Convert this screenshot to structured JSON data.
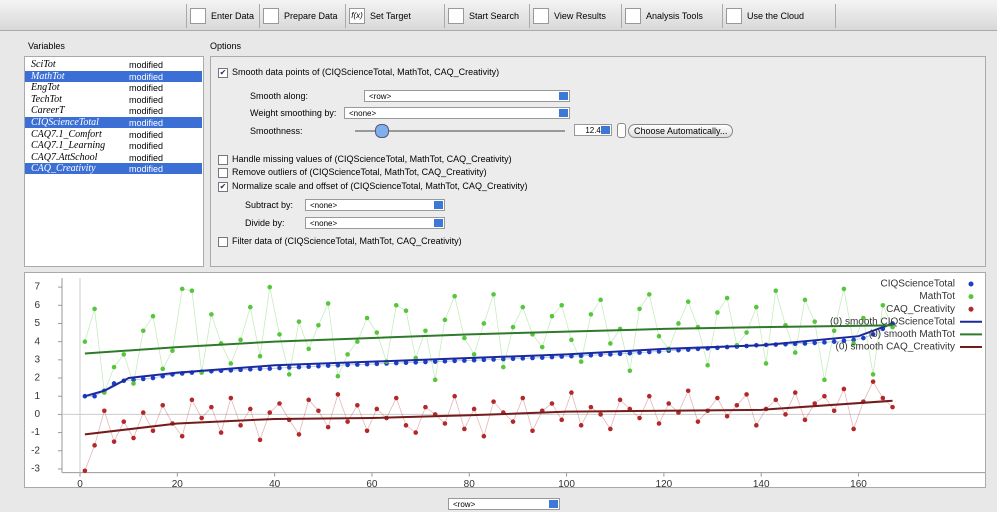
{
  "toolbar": {
    "tabs": [
      "Enter Data",
      "Prepare Data",
      "Set Target",
      "Start Search",
      "View Results",
      "Analysis Tools",
      "Use the Cloud"
    ],
    "set_target_icon": "f(x)"
  },
  "variables": {
    "title": "Variables",
    "rows": [
      {
        "name": "SciTot",
        "status": "modified",
        "selected": false
      },
      {
        "name": "MathTot",
        "status": "modified",
        "selected": true
      },
      {
        "name": "EngTot",
        "status": "modified",
        "selected": false
      },
      {
        "name": "TechTot",
        "status": "modified",
        "selected": false
      },
      {
        "name": "CareerT",
        "status": "modified",
        "selected": false
      },
      {
        "name": "CIQScienceTotal",
        "status": "modified",
        "selected": true
      },
      {
        "name": "CAQ7.1_Comfort",
        "status": "modified",
        "selected": false
      },
      {
        "name": "CAQ7.1_Learning",
        "status": "modified",
        "selected": false
      },
      {
        "name": "CAQ7.AttSchool",
        "status": "modified",
        "selected": false
      },
      {
        "name": "CAQ_Creativity",
        "status": "modified",
        "selected": true
      }
    ]
  },
  "options": {
    "title": "Options",
    "smooth": {
      "label": "Smooth data points of (CIQScienceTotal, MathTot, CAQ_Creativity)",
      "checked": true
    },
    "smooth_along": {
      "label": "Smooth along:",
      "value": "<row>"
    },
    "weight": {
      "label": "Weight smoothing by:",
      "value": "<none>"
    },
    "smoothness": {
      "label": "Smoothness:",
      "value": {
        "value": 12.4,
        "label": "12.4%"
      },
      "button": "Choose Automatically..."
    },
    "missing": {
      "label": "Handle missing values of (CIQScienceTotal, MathTot, CAQ_Creativity)",
      "checked": false
    },
    "outliers": {
      "label": "Remove outliers of (CIQScienceTotal, MathTot, CAQ_Creativity)",
      "checked": false
    },
    "normalize": {
      "label": "Normalize scale and offset of (CIQScienceTotal, MathTot, CAQ_Creativity)",
      "checked": true
    },
    "subtract": {
      "label": "Subtract by:",
      "value": "<none>"
    },
    "divide": {
      "label": "Divide by:",
      "value": "<none>"
    },
    "filter": {
      "label": "Filter data of (CIQScienceTotal, MathTot, CAQ_Creativity)",
      "checked": false
    }
  },
  "chart_data": {
    "type": "scatter",
    "x_selector": "<row>",
    "xlim": [
      -3.7,
      186
    ],
    "ylim": [
      -3.2,
      7.5
    ],
    "xticks": [
      0,
      20,
      40,
      60,
      80,
      100,
      120,
      140,
      160
    ],
    "yticks": [
      -3,
      -2,
      -1,
      0,
      1,
      2,
      3,
      4,
      5,
      6,
      7
    ],
    "legend": "upper right",
    "zero_lines": true,
    "x": [
      1,
      3,
      5,
      7,
      9,
      11,
      13,
      15,
      17,
      19,
      21,
      23,
      25,
      27,
      29,
      31,
      33,
      35,
      37,
      39,
      41,
      43,
      45,
      47,
      49,
      51,
      53,
      55,
      57,
      59,
      61,
      63,
      65,
      67,
      69,
      71,
      73,
      75,
      77,
      79,
      81,
      83,
      85,
      87,
      89,
      91,
      93,
      95,
      97,
      99,
      101,
      103,
      105,
      107,
      109,
      111,
      113,
      115,
      117,
      119,
      121,
      123,
      125,
      127,
      129,
      131,
      133,
      135,
      137,
      139,
      141,
      143,
      145,
      147,
      149,
      151,
      153,
      155,
      157,
      159,
      161,
      163,
      165,
      167
    ],
    "series": [
      {
        "name": "CIQScienceTotal",
        "color": "#1c3fc4",
        "style": "points",
        "values": [
          1.0,
          1.0,
          1.3,
          1.7,
          1.85,
          1.9,
          1.95,
          2.0,
          2.1,
          2.2,
          2.25,
          2.3,
          2.35,
          2.37,
          2.4,
          2.42,
          2.45,
          2.48,
          2.5,
          2.52,
          2.55,
          2.58,
          2.6,
          2.62,
          2.65,
          2.68,
          2.7,
          2.72,
          2.74,
          2.76,
          2.78,
          2.8,
          2.82,
          2.84,
          2.86,
          2.88,
          2.9,
          2.92,
          2.94,
          2.96,
          2.98,
          3.0,
          3.02,
          3.04,
          3.06,
          3.08,
          3.1,
          3.12,
          3.15,
          3.18,
          3.2,
          3.22,
          3.25,
          3.28,
          3.3,
          3.33,
          3.36,
          3.4,
          3.43,
          3.46,
          3.5,
          3.53,
          3.56,
          3.6,
          3.63,
          3.66,
          3.7,
          3.73,
          3.76,
          3.8,
          3.82,
          3.84,
          3.86,
          3.88,
          3.9,
          3.93,
          3.96,
          4.0,
          4.05,
          4.1,
          4.2,
          4.4,
          4.7,
          5.0
        ]
      },
      {
        "name": "MathTot",
        "color": "#56c63c",
        "style": "points",
        "values": [
          4.0,
          5.8,
          1.2,
          2.6,
          3.3,
          1.7,
          4.6,
          5.4,
          2.5,
          3.5,
          6.9,
          6.8,
          2.3,
          5.5,
          3.9,
          2.8,
          4.1,
          5.9,
          3.2,
          7.0,
          4.4,
          2.2,
          5.1,
          3.6,
          4.9,
          6.1,
          2.1,
          3.3,
          4.0,
          5.3,
          4.5,
          2.9,
          6.0,
          5.7,
          3.1,
          4.6,
          1.9,
          5.2,
          6.5,
          4.2,
          3.3,
          5.0,
          6.6,
          2.6,
          4.8,
          5.9,
          4.4,
          3.7,
          5.4,
          6.0,
          4.1,
          2.9,
          5.5,
          6.3,
          3.9,
          4.7,
          2.4,
          5.8,
          6.6,
          4.3,
          3.6,
          5.0,
          6.2,
          4.8,
          2.7,
          5.6,
          6.4,
          3.8,
          4.5,
          5.9,
          2.8,
          6.8,
          4.9,
          3.4,
          6.3,
          5.1,
          1.9,
          4.6,
          6.9,
          3.9,
          5.3,
          2.2,
          6.0,
          4.8
        ]
      },
      {
        "name": "CAQ_Creativity",
        "color": "#b3282a",
        "style": "points",
        "values": [
          -3.1,
          -1.7,
          0.2,
          -1.5,
          -0.4,
          -1.3,
          0.1,
          -0.9,
          0.5,
          -0.5,
          -1.2,
          0.8,
          -0.2,
          0.4,
          -1.0,
          0.9,
          -0.6,
          0.3,
          -1.4,
          0.1,
          0.6,
          -0.3,
          -1.1,
          0.8,
          0.2,
          -0.7,
          1.1,
          -0.4,
          0.5,
          -0.9,
          0.3,
          -0.2,
          0.9,
          -0.6,
          -1.0,
          0.4,
          0.0,
          -0.5,
          1.0,
          -0.8,
          0.3,
          -1.2,
          0.7,
          0.1,
          -0.4,
          0.9,
          -0.9,
          0.2,
          0.6,
          -0.3,
          1.2,
          -0.6,
          0.4,
          0.0,
          -0.8,
          0.8,
          0.3,
          -0.2,
          1.0,
          -0.5,
          0.6,
          0.1,
          1.3,
          -0.4,
          0.2,
          0.9,
          -0.1,
          0.5,
          1.1,
          -0.6,
          0.3,
          0.8,
          0.0,
          1.2,
          -0.3,
          0.6,
          1.0,
          0.2,
          1.4,
          -0.8,
          0.7,
          1.8,
          0.9,
          0.4
        ]
      },
      {
        "name": "(0) smooth CIQScienceTotal",
        "color": "#1a2a9c",
        "style": "line",
        "x": [
          1,
          5,
          10,
          20,
          40,
          60,
          80,
          100,
          120,
          140,
          160,
          167
        ],
        "values": [
          1.0,
          1.3,
          2.0,
          2.3,
          2.7,
          2.9,
          3.1,
          3.3,
          3.6,
          3.8,
          4.3,
          5.0
        ]
      },
      {
        "name": "(0) smooth MathTot",
        "color": "#2f7a2a",
        "style": "line",
        "x": [
          1,
          20,
          40,
          60,
          80,
          100,
          120,
          140,
          167
        ],
        "values": [
          3.35,
          3.7,
          4.0,
          4.2,
          4.4,
          4.55,
          4.7,
          4.8,
          4.9
        ]
      },
      {
        "name": "(0) smooth CAQ_Creativity",
        "color": "#741c1c",
        "style": "line",
        "x": [
          1,
          20,
          40,
          60,
          80,
          100,
          120,
          140,
          167
        ],
        "values": [
          -1.1,
          -0.5,
          -0.25,
          -0.2,
          -0.05,
          0.15,
          0.2,
          0.25,
          0.75
        ]
      }
    ]
  }
}
